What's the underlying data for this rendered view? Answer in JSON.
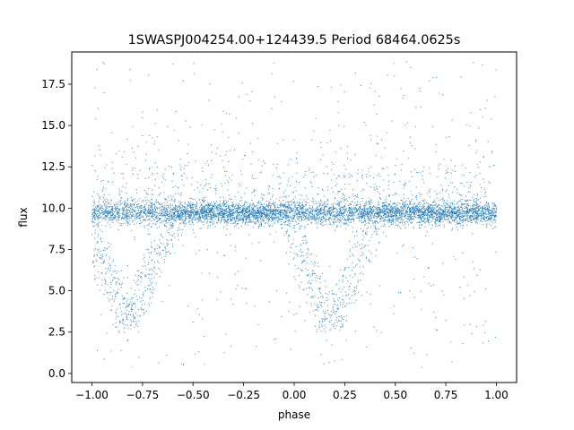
{
  "chart_data": {
    "type": "scatter",
    "title": "1SWASPJ004254.00+124439.5 Period 68464.0625s",
    "xlabel": "phase",
    "ylabel": "flux",
    "xlim": [
      -1.1,
      1.1
    ],
    "ylim": [
      -0.55,
      19.45
    ],
    "xticks": [
      -1.0,
      -0.75,
      -0.5,
      -0.25,
      0.0,
      0.25,
      0.5,
      0.75,
      1.0
    ],
    "xtick_labels": [
      "−1.00",
      "−0.75",
      "−0.50",
      "−0.25",
      "0.00",
      "0.25",
      "0.50",
      "0.75",
      "1.00"
    ],
    "yticks": [
      0.0,
      2.5,
      5.0,
      7.5,
      10.0,
      12.5,
      15.0,
      17.5
    ],
    "ytick_labels": [
      "0.0",
      "2.5",
      "5.0",
      "7.5",
      "10.0",
      "12.5",
      "15.0",
      "17.5"
    ],
    "grid": false,
    "legend": false,
    "marker_color": "#1f77b4",
    "baseline_flux": 9.7,
    "eclipse_minimum_flux": 2.8,
    "eclipse_minima_phase": [
      -0.82,
      0.18
    ],
    "flux_range": [
      0.3,
      18.9
    ]
  }
}
